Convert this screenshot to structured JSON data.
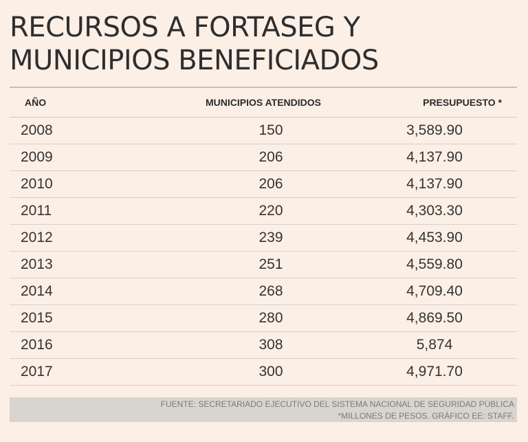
{
  "title": {
    "line1": "RECURSOS A FORTASEG Y",
    "line2": "MUNICIPIOS BENEFICIADOS"
  },
  "chart_data": {
    "type": "table",
    "title": "RECURSOS A FORTASEG Y MUNICIPIOS BENEFICIADOS",
    "columns": [
      "AÑO",
      "MUNICIPIOS ATENDIDOS",
      "PRESUPUESTO *"
    ],
    "rows": [
      [
        "2008",
        "150",
        "3,589.90"
      ],
      [
        "2009",
        "206",
        "4,137.90"
      ],
      [
        "2010",
        "206",
        "4,137.90"
      ],
      [
        "2011",
        "220",
        "4,303.30"
      ],
      [
        "2012",
        "239",
        "4,453.90"
      ],
      [
        "2013",
        "251",
        "4,559.80"
      ],
      [
        "2014",
        "268",
        "4,709.40"
      ],
      [
        "2015",
        "280",
        "4,869.50"
      ],
      [
        "2016",
        "308",
        "5,874"
      ],
      [
        "2017",
        "300",
        "4,971.70"
      ]
    ]
  },
  "footer": {
    "source": "FUENTE: SECRETARIADO EJECUTIVO DEL SISTEMA NACIONAL DE SEGURIDAD PÚBLICA",
    "note": "*MILLONES DE PESOS. GRÁFICO EE: STAFF."
  },
  "colors": {
    "background": "#fcefe6",
    "footer_band": "#d8d4d0",
    "rule": "#d3c8c0"
  }
}
